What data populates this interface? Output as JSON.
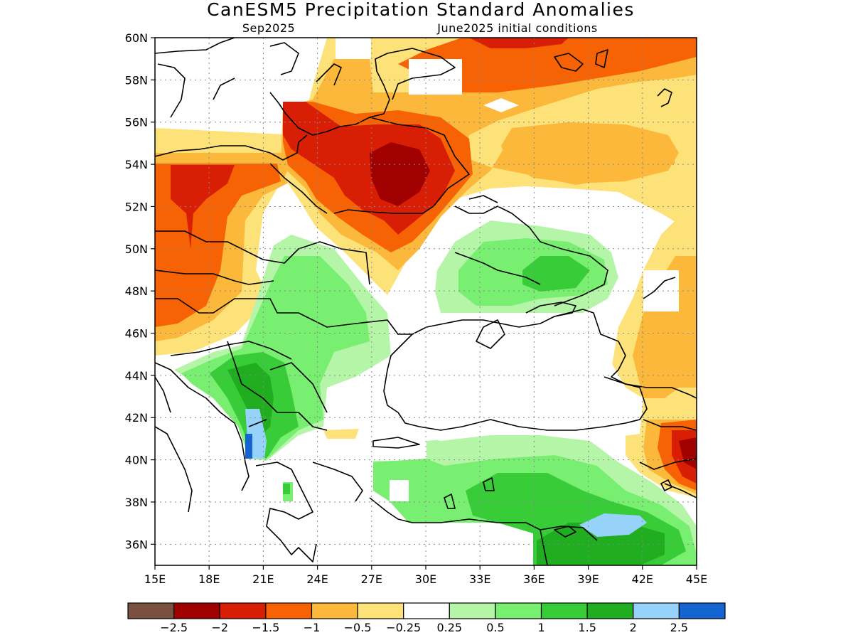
{
  "title": "CanESM5 Precipitation Standard Anomalies",
  "subtitle_left": "Sep2025",
  "subtitle_right": "June2025 initial conditions",
  "map": {
    "lat_labels": [
      "60N",
      "58N",
      "56N",
      "54N",
      "52N",
      "50N",
      "48N",
      "46N",
      "44N",
      "42N",
      "40N",
      "38N",
      "36N"
    ],
    "lon_labels": [
      "15E",
      "18E",
      "21E",
      "24E",
      "27E",
      "30E",
      "33E",
      "36E",
      "39E",
      "42E",
      "45E"
    ],
    "lon_range": [
      15,
      45
    ],
    "lat_range": [
      35,
      60
    ],
    "grid": "dotted"
  },
  "colorbar": {
    "colors": [
      "#7a5040",
      "#a00000",
      "#d81e05",
      "#f76205",
      "#fbb83a",
      "#fde27a",
      "#ffffff",
      "#b5f5a8",
      "#78ef70",
      "#38cd38",
      "#20ad20",
      "#97d2fa",
      "#1464d2"
    ],
    "labels": [
      "−2.5",
      "−2",
      "−1.5",
      "−1",
      "−0.5",
      "−0.25",
      "0.25",
      "0.5",
      "1",
      "1.5",
      "2",
      "2.5"
    ]
  }
}
